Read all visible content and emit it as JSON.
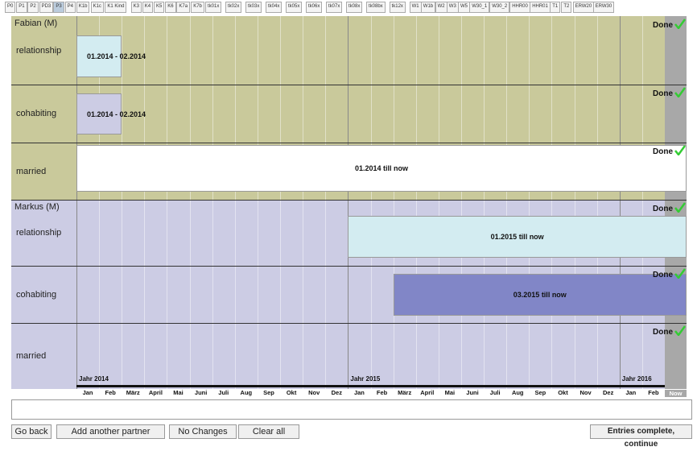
{
  "tabs": [
    "P0",
    "P1",
    "P2",
    "PD3",
    "P3",
    "P4",
    "K1b",
    "K1c",
    "K1 Kind",
    "K3",
    "K4",
    "K5",
    "K6",
    "K7a",
    "K7b",
    "tk01x",
    "tk02x",
    "tk03x",
    "tk04x",
    "tk05x",
    "tk06x",
    "tk07x",
    "tk08x",
    "tk08bx",
    "tk12x",
    "W1",
    "W1b",
    "W2",
    "W3",
    "W5",
    "W30_1",
    "W30_2",
    "HHR00",
    "HHR01",
    "T1",
    "T2",
    "ERW20",
    "ERW30"
  ],
  "persons": [
    {
      "name": "Fabian (M)",
      "rows": [
        {
          "label": "relationship",
          "period": "01.2014 - 02.2014",
          "status": "Done"
        },
        {
          "label": "cohabiting",
          "period": "01.2014 - 02.2014",
          "status": "Done"
        },
        {
          "label": "married",
          "period": "01.2014  till now",
          "status": "Done"
        }
      ]
    },
    {
      "name": "Markus (M)",
      "rows": [
        {
          "label": "relationship",
          "period": "01.2015 till now",
          "status": "Done"
        },
        {
          "label": "cohabiting",
          "period": "03.2015 till now",
          "status": "Done"
        },
        {
          "label": "married",
          "status": "Done"
        }
      ]
    }
  ],
  "timeline": {
    "years": [
      "Jahr 2014",
      "Jahr 2015",
      "Jahr 2016"
    ],
    "months": [
      "Jan",
      "Feb",
      "März",
      "April",
      "Mai",
      "Juni",
      "Juli",
      "Aug",
      "Sep",
      "Okt",
      "Nov",
      "Dez",
      "Jan",
      "Feb",
      "März",
      "April",
      "Mai",
      "Juni",
      "Juli",
      "Aug",
      "Sep",
      "Okt",
      "Nov",
      "Dez",
      "Jan",
      "Feb"
    ],
    "now": "Now"
  },
  "buttons": {
    "back": "Go back",
    "add": "Add another partner",
    "nochange": "No Changes",
    "clear": "Clear all",
    "continue": "Entries complete, continue"
  }
}
